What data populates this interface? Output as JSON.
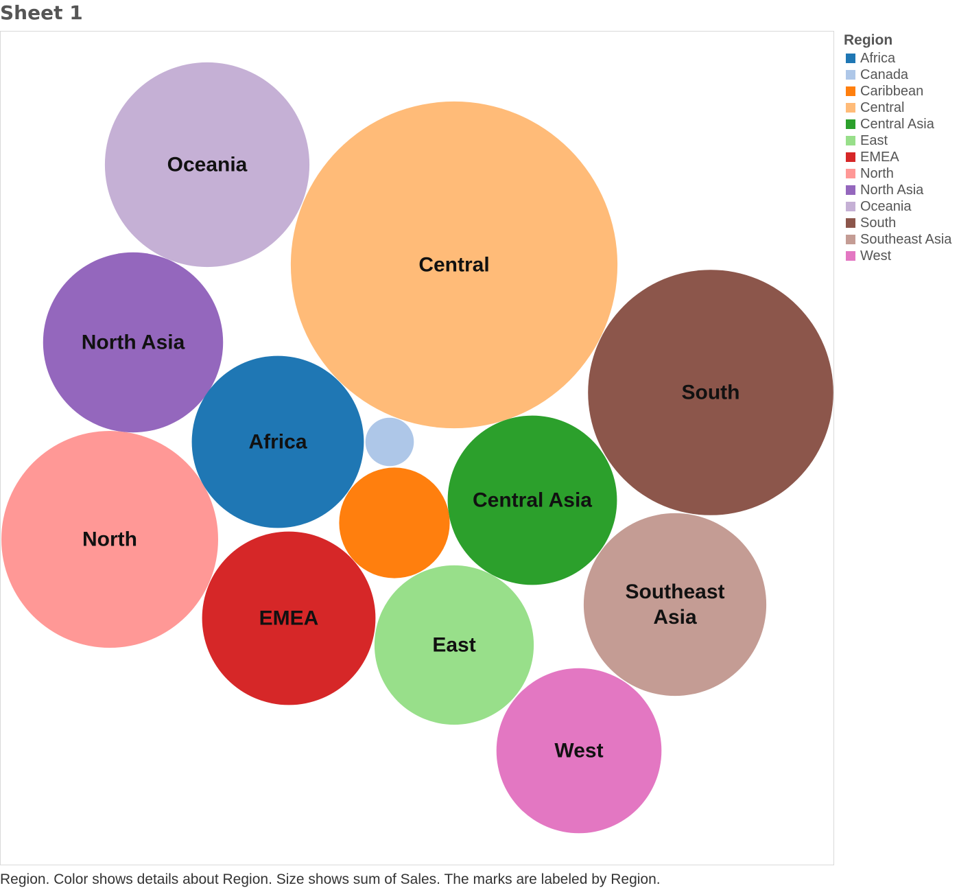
{
  "sheet": {
    "title": "Sheet 1"
  },
  "legend": {
    "title": "Region",
    "items": [
      {
        "label": "Africa",
        "color": "#1f77b4"
      },
      {
        "label": "Canada",
        "color": "#aec7e8"
      },
      {
        "label": "Caribbean",
        "color": "#ff7f0e"
      },
      {
        "label": "Central",
        "color": "#ffbb78"
      },
      {
        "label": "Central Asia",
        "color": "#2ca02c"
      },
      {
        "label": "East",
        "color": "#98df8a"
      },
      {
        "label": "EMEA",
        "color": "#d62728"
      },
      {
        "label": "North",
        "color": "#ff9896"
      },
      {
        "label": "North Asia",
        "color": "#9467bd"
      },
      {
        "label": "Oceania",
        "color": "#c5b0d5"
      },
      {
        "label": "South",
        "color": "#8c564b"
      },
      {
        "label": "Southeast Asia",
        "color": "#c49c94"
      },
      {
        "label": "West",
        "color": "#e377c2"
      }
    ]
  },
  "caption": "Region.  Color shows details about Region.  Size shows sum of Sales.  The marks are labeled by Region.",
  "chart_data": {
    "type": "bubble",
    "size_measure": "sum of Sales",
    "color_dimension": "Region",
    "label_dimension": "Region",
    "relative_values": [
      {
        "region": "Central",
        "label_lines": [
          "Central"
        ],
        "value": 2.27,
        "color": "#ffbb78"
      },
      {
        "region": "South",
        "label_lines": [
          "South"
        ],
        "value": 1.28,
        "color": "#8c564b"
      },
      {
        "region": "North",
        "label_lines": [
          "North"
        ],
        "value": 1.0,
        "color": "#ff9896"
      },
      {
        "region": "Oceania",
        "label_lines": [
          "Oceania"
        ],
        "value": 0.89,
        "color": "#c5b0d5"
      },
      {
        "region": "Southeast Asia",
        "label_lines": [
          "Southeast",
          "Asia"
        ],
        "value": 0.71,
        "color": "#c49c94"
      },
      {
        "region": "North Asia",
        "label_lines": [
          "North Asia"
        ],
        "value": 0.69,
        "color": "#9467bd"
      },
      {
        "region": "EMEA",
        "label_lines": [
          "EMEA"
        ],
        "value": 0.64,
        "color": "#d62728"
      },
      {
        "region": "Africa",
        "label_lines": [
          "Africa"
        ],
        "value": 0.63,
        "color": "#1f77b4"
      },
      {
        "region": "Central Asia",
        "label_lines": [
          "Central Asia"
        ],
        "value": 0.61,
        "color": "#2ca02c"
      },
      {
        "region": "West",
        "label_lines": [
          "West"
        ],
        "value": 0.58,
        "color": "#e377c2"
      },
      {
        "region": "East",
        "label_lines": [
          "East"
        ],
        "value": 0.54,
        "color": "#98df8a"
      },
      {
        "region": "Caribbean",
        "label_lines": [],
        "value": 0.26,
        "color": "#ff7f0e"
      },
      {
        "region": "Canada",
        "label_lines": [],
        "value": 0.05,
        "color": "#aec7e8"
      }
    ]
  }
}
